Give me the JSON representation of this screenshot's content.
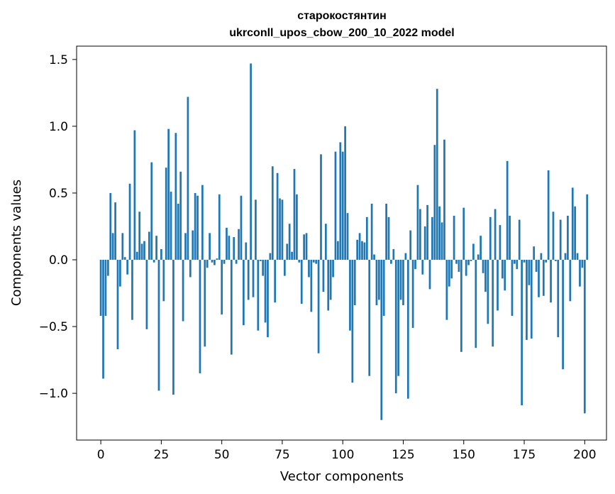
{
  "chart_data": {
    "type": "bar",
    "title_line1": "старокостянтин",
    "title_line2": "ukrconll_upos_cbow_200_10_2022 model",
    "xlabel": "Vector components",
    "ylabel": "Components values",
    "xlim": [
      -10,
      209
    ],
    "ylim": [
      -1.35,
      1.6
    ],
    "xticks": [
      0,
      25,
      50,
      75,
      100,
      125,
      150,
      175,
      200
    ],
    "yticks": [
      -1.0,
      -0.5,
      0.0,
      0.5,
      1.0,
      1.5
    ],
    "ytick_labels": [
      "−1.0",
      "−0.5",
      "0.0",
      "0.5",
      "1.0",
      "1.5"
    ],
    "xtick_labels": [
      "0",
      "25",
      "50",
      "75",
      "100",
      "125",
      "150",
      "175",
      "200"
    ],
    "bar_color": "#1f77b4",
    "values": [
      -0.42,
      -0.89,
      -0.42,
      -0.12,
      0.5,
      0.2,
      0.43,
      -0.67,
      -0.2,
      0.2,
      0.02,
      -0.11,
      0.57,
      -0.45,
      0.97,
      0.06,
      0.36,
      0.12,
      0.14,
      -0.52,
      0.21,
      0.73,
      -0.02,
      0.18,
      -0.98,
      0.08,
      -0.31,
      0.69,
      0.98,
      0.51,
      -1.01,
      0.95,
      0.42,
      0.66,
      -0.46,
      0.2,
      1.22,
      -0.13,
      0.22,
      0.5,
      0.48,
      -0.85,
      0.56,
      -0.65,
      -0.06,
      0.2,
      -0.02,
      -0.04,
      0.01,
      0.49,
      -0.41,
      -0.03,
      0.24,
      0.18,
      -0.71,
      0.17,
      -0.03,
      0.23,
      0.48,
      -0.49,
      0.13,
      -0.3,
      1.47,
      -0.28,
      0.45,
      -0.53,
      -0.01,
      -0.12,
      -0.47,
      -0.58,
      0.05,
      0.7,
      -0.32,
      0.65,
      0.46,
      0.45,
      -0.12,
      0.12,
      0.27,
      0.06,
      0.68,
      0.49,
      -0.02,
      -0.33,
      0.19,
      0.2,
      -0.13,
      -0.39,
      -0.02,
      -0.03,
      -0.7,
      0.79,
      -0.24,
      0.27,
      -0.38,
      -0.3,
      -0.13,
      0.81,
      0.14,
      0.88,
      0.81,
      1.0,
      0.35,
      -0.53,
      -0.92,
      -0.34,
      0.15,
      0.2,
      0.14,
      0.13,
      0.32,
      -0.87,
      0.42,
      0.04,
      -0.34,
      -0.3,
      -1.2,
      -0.42,
      0.42,
      0.32,
      -0.03,
      0.08,
      -1.0,
      -0.87,
      -0.3,
      -0.34,
      0.05,
      -1.04,
      0.22,
      -0.51,
      -0.07,
      0.56,
      0.38,
      -0.11,
      0.25,
      0.41,
      -0.22,
      0.32,
      0.86,
      1.28,
      0.4,
      0.28,
      0.9,
      -0.45,
      -0.2,
      -0.14,
      0.33,
      -0.03,
      -0.09,
      -0.69,
      0.39,
      -0.12,
      -0.04,
      -0.01,
      0.12,
      -0.66,
      0.04,
      0.18,
      -0.1,
      -0.24,
      -0.48,
      0.32,
      -0.65,
      0.38,
      -0.38,
      0.26,
      -0.14,
      -0.23,
      0.74,
      0.33,
      -0.42,
      -0.03,
      -0.07,
      0.3,
      -1.09,
      -0.02,
      -0.6,
      -0.19,
      -0.59,
      0.1,
      -0.09,
      -0.28,
      0.05,
      -0.27,
      -0.02,
      0.67,
      -0.32,
      0.36,
      -0.01,
      -0.58,
      0.3,
      -0.82,
      0.05,
      0.33,
      -0.31,
      0.54,
      0.4,
      0.05,
      -0.2,
      -0.06,
      -1.15,
      0.49
    ]
  }
}
